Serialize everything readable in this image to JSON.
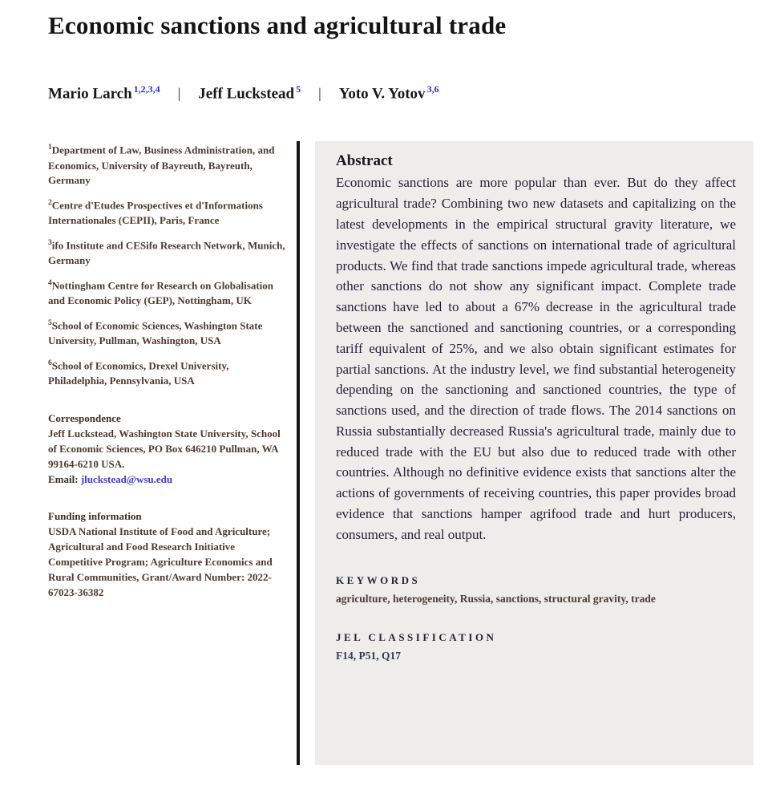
{
  "article": {
    "title": "Economic sanctions and agricultural trade",
    "author_separator": "|",
    "authors": [
      {
        "name": "Mario Larch",
        "superscript": "1,2,3,4"
      },
      {
        "name": "Jeff Luckstead",
        "superscript": "5"
      },
      {
        "name": "Yoto V. Yotov",
        "superscript": "3,6"
      }
    ]
  },
  "affiliations": [
    {
      "marker": "1",
      "text": "Department of Law, Business Administration, and Economics, University of Bayreuth, Bayreuth, Germany"
    },
    {
      "marker": "2",
      "text": "Centre d'Etudes Prospectives et d'Informations Internationales (CEPII), Paris, France"
    },
    {
      "marker": "3",
      "text": "ifo Institute and CESifo Research Network, Munich, Germany"
    },
    {
      "marker": "4",
      "text": "Nottingham Centre for Research on Globalisation and Economic Policy (GEP), Nottingham, UK"
    },
    {
      "marker": "5",
      "text": "School of Economic Sciences, Washington State University, Pullman, Washington, USA"
    },
    {
      "marker": "6",
      "text": "School of Economics, Drexel University, Philadelphia, Pennsylvania, USA"
    }
  ],
  "correspondence": {
    "heading": "Correspondence",
    "text": "Jeff Luckstead, Washington State University, School of Economic Sciences, PO Box 646210 Pullman, WA 99164-6210 USA.",
    "email_label": "Email:",
    "email": "jluckstead@wsu.edu"
  },
  "funding": {
    "heading": "Funding information",
    "text": "USDA National Institute of Food and Agriculture; Agricultural and Food Research Initiative Competitive Program; Agriculture Economics and Rural Communities, Grant/Award Number: 2022-67023-36382"
  },
  "abstract": {
    "heading": "Abstract",
    "text": "Economic sanctions are more popular than ever. But do they affect agricultural trade? Combining two new datasets and capitalizing on the latest developments in the empirical structural gravity literature, we investigate the effects of sanctions on international trade of agricultural products. We find that trade sanctions impede agricultural trade, whereas other sanctions do not show any significant impact. Complete trade sanctions have led to about a 67% decrease in the agricultural trade between the sanctioned and sanctioning countries, or a corresponding tariff equivalent of 25%, and we also obtain significant estimates for partial sanctions. At the industry level, we find substantial heterogeneity depending on the sanctioning and sanctioned countries, the type of sanctions used, and the direction of trade flows. The 2014 sanctions on Russia substantially decreased Russia's agricultural trade, mainly due to reduced trade with the EU but also due to reduced trade with other countries. Although no definitive evidence exists that sanctions alter the actions of governments of receiving countries, this paper provides broad evidence that sanctions hamper agrifood trade and hurt producers, consumers, and real output."
  },
  "keywords": {
    "heading": "KEYWORDS",
    "text": "agriculture, heterogeneity, Russia, sanctions, structural gravity, trade"
  },
  "jel": {
    "heading": "JEL CLASSIFICATION",
    "text": "F14, P51, Q17"
  },
  "colors": {
    "superscript_blue": "#2b2bdd",
    "email_link_blue": "#3d3dd8",
    "abstract_panel_gray": "#eeedec",
    "divider_black": "#161616",
    "left_column_text": "#4c3a31"
  }
}
